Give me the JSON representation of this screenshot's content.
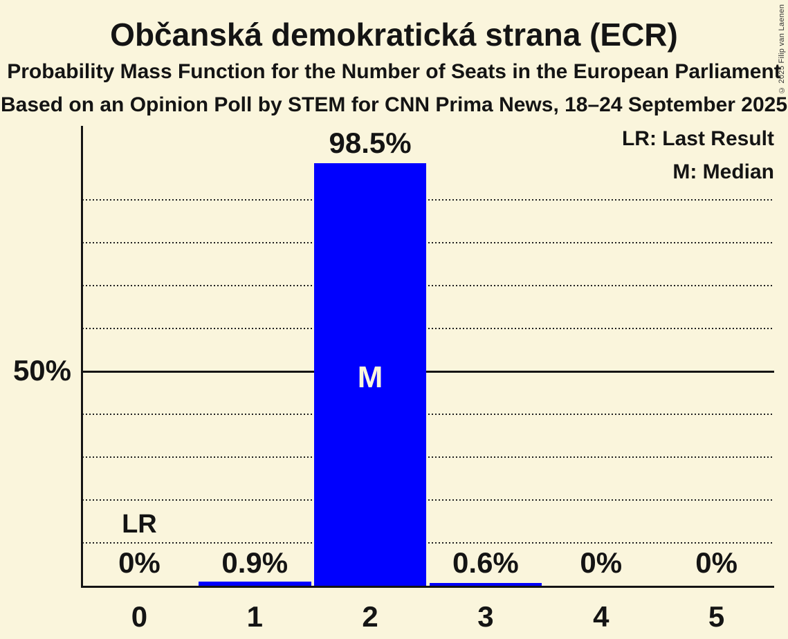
{
  "page": {
    "title": "Občanská demokratická strana (ECR)",
    "subtitle_line1": "Probability Mass Function for the Number of Seats in the European Parliament",
    "subtitle_line2": "Based on an Opinion Poll by STEM for CNN Prima News, 18–24 September 2025",
    "copyright": "© 2025 Filip van Laenen"
  },
  "legend": {
    "last_result": "LR: Last Result",
    "median": "M: Median",
    "position": "top-right"
  },
  "y_axis": {
    "tick_label_50": "50%"
  },
  "colors": {
    "background": "#FAF5DC",
    "bar": "#0000FE",
    "text": "#141414",
    "median_label": "#FAF5DC",
    "gridline": "#1d1d1d",
    "copyright_text": "#333333"
  },
  "chart_data": {
    "type": "bar",
    "title": "Občanská demokratická strana (ECR)",
    "categories": [
      "0",
      "1",
      "2",
      "3",
      "4",
      "5"
    ],
    "values": [
      0,
      0.9,
      98.5,
      0.6,
      0,
      0
    ],
    "value_labels": [
      "0%",
      "0.9%",
      "98.5%",
      "0.6%",
      "0%",
      "0%"
    ],
    "ylim": [
      0,
      107
    ],
    "y_dotted_gridlines_pct": [
      10,
      20,
      30,
      40,
      60,
      70,
      80,
      90
    ],
    "y_solid_line_pct": 50,
    "y_tick_labels": [
      {
        "pct": 50,
        "label": "50%"
      }
    ],
    "grid": "dotted-horizontal",
    "legend_position": "top-right",
    "median": {
      "category": "2",
      "marker": "M"
    },
    "last_result": {
      "category": "0",
      "marker": "LR"
    }
  }
}
